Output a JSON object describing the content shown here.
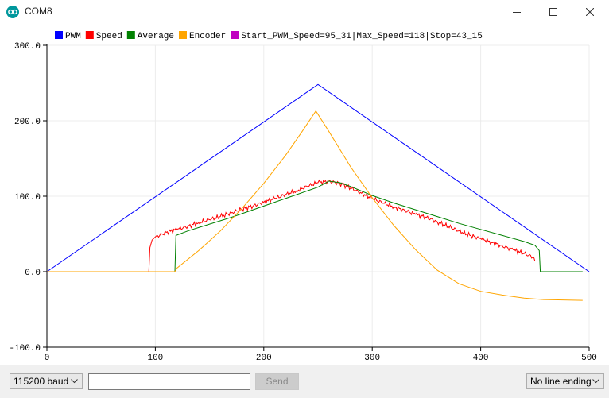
{
  "window": {
    "title": "COM8"
  },
  "chart_data": {
    "type": "line",
    "xlim": [
      0,
      500
    ],
    "ylim": [
      -100,
      300
    ],
    "x_ticks": [
      0,
      100,
      200,
      300,
      400,
      500
    ],
    "y_ticks": [
      -100,
      0,
      100,
      200,
      300
    ],
    "y_tick_labels": [
      "-100.0",
      "0.0",
      "100.0",
      "200.0",
      "300.0"
    ],
    "grid": true,
    "legend_position": "top",
    "series": [
      {
        "name": "PWM",
        "color": "#0000ff",
        "points": [
          [
            0,
            0
          ],
          [
            250,
            248
          ],
          [
            500,
            0
          ]
        ]
      },
      {
        "name": "Speed",
        "color": "#ff0000",
        "points": [
          [
            0,
            0
          ],
          [
            94,
            0
          ],
          [
            95,
            32
          ],
          [
            97,
            42
          ],
          [
            100,
            46
          ],
          [
            110,
            52
          ],
          [
            120,
            56
          ],
          [
            130,
            60
          ],
          [
            140,
            65
          ],
          [
            150,
            69
          ],
          [
            160,
            73
          ],
          [
            170,
            78
          ],
          [
            180,
            83
          ],
          [
            190,
            87
          ],
          [
            200,
            92
          ],
          [
            210,
            97
          ],
          [
            220,
            102
          ],
          [
            230,
            107
          ],
          [
            240,
            113
          ],
          [
            250,
            118
          ],
          [
            260,
            120
          ],
          [
            270,
            117
          ],
          [
            280,
            111
          ],
          [
            290,
            104
          ],
          [
            300,
            97
          ],
          [
            310,
            91
          ],
          [
            320,
            86
          ],
          [
            330,
            81
          ],
          [
            340,
            76
          ],
          [
            350,
            72
          ],
          [
            360,
            66
          ],
          [
            370,
            60
          ],
          [
            380,
            54
          ],
          [
            390,
            48
          ],
          [
            400,
            44
          ],
          [
            410,
            39
          ],
          [
            420,
            34
          ],
          [
            430,
            29
          ],
          [
            440,
            24
          ],
          [
            449,
            19
          ],
          [
            450,
            14
          ]
        ],
        "noise": 3.5,
        "noise_range": [
          95,
          450
        ]
      },
      {
        "name": "Average",
        "color": "#008000",
        "points": [
          [
            0,
            0
          ],
          [
            118,
            0
          ],
          [
            119,
            48
          ],
          [
            130,
            54
          ],
          [
            150,
            63
          ],
          [
            170,
            72
          ],
          [
            190,
            82
          ],
          [
            210,
            92
          ],
          [
            230,
            102
          ],
          [
            250,
            112
          ],
          [
            260,
            120
          ],
          [
            270,
            118
          ],
          [
            280,
            113
          ],
          [
            290,
            107
          ],
          [
            300,
            101
          ],
          [
            320,
            91
          ],
          [
            340,
            82
          ],
          [
            360,
            73
          ],
          [
            380,
            64
          ],
          [
            400,
            56
          ],
          [
            420,
            48
          ],
          [
            440,
            40
          ],
          [
            450,
            35
          ],
          [
            454,
            28
          ],
          [
            455,
            0
          ],
          [
            494,
            0
          ]
        ]
      },
      {
        "name": "Encoder",
        "color": "#ffa500",
        "points": [
          [
            0,
            0
          ],
          [
            118,
            0
          ],
          [
            120,
            5
          ],
          [
            140,
            28
          ],
          [
            160,
            54
          ],
          [
            180,
            84
          ],
          [
            200,
            117
          ],
          [
            220,
            154
          ],
          [
            235,
            185
          ],
          [
            248,
            213
          ],
          [
            260,
            186
          ],
          [
            280,
            139
          ],
          [
            300,
            98
          ],
          [
            320,
            61
          ],
          [
            340,
            29
          ],
          [
            360,
            2
          ],
          [
            380,
            -16
          ],
          [
            400,
            -26
          ],
          [
            420,
            -31
          ],
          [
            440,
            -35
          ],
          [
            458,
            -37
          ],
          [
            494,
            -38
          ]
        ]
      },
      {
        "name": "Start_PWM_Speed=95_31|Max_Speed=118|Stop=43_15",
        "color": "#c000c0",
        "points": []
      }
    ]
  },
  "controls": {
    "baud": "115200 baud",
    "input_value": "",
    "send_label": "Send",
    "line_ending": "No line ending"
  }
}
